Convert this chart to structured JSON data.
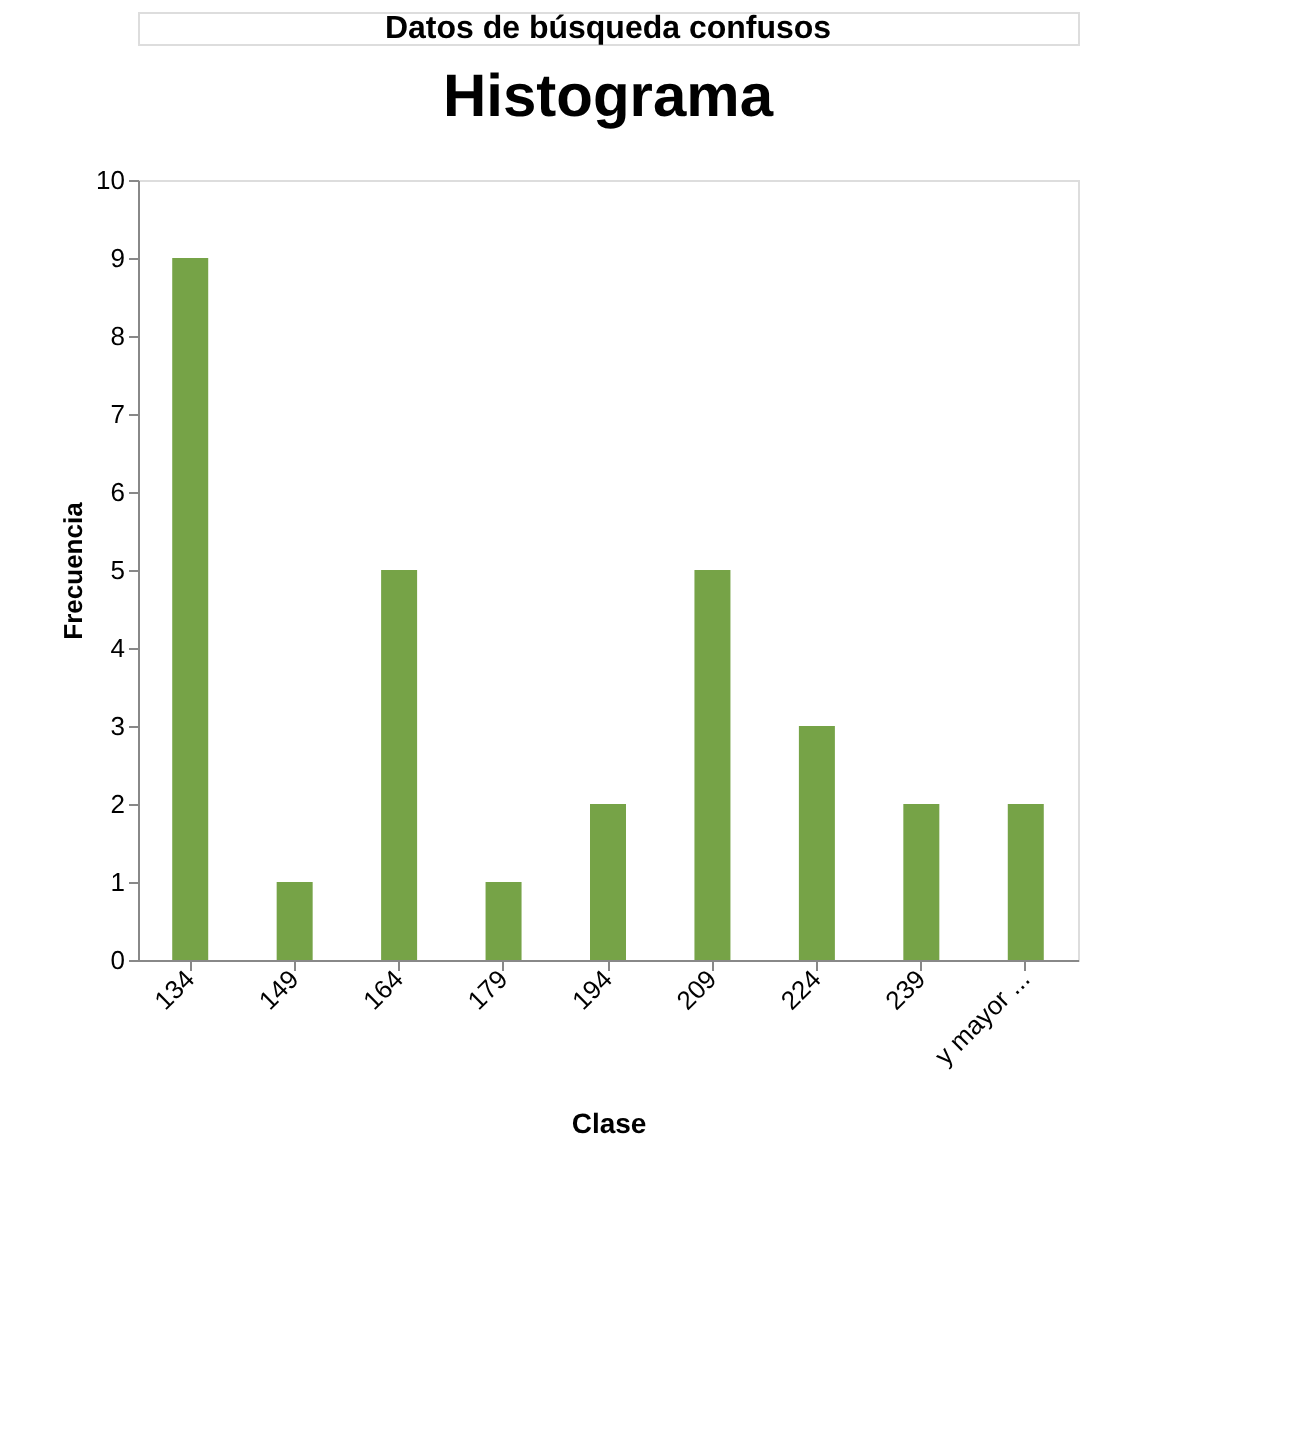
{
  "chart_data": {
    "type": "bar",
    "title": "Histograma",
    "xlabel": "Clase",
    "ylabel": "Frecuencia",
    "annotations": [
      "Datos de búsqueda confusos"
    ],
    "categories": [
      "134",
      "149",
      "164",
      "179",
      "194",
      "209",
      "224",
      "239",
      "y mayor ..."
    ],
    "series": [
      {
        "color": "#76a347",
        "values": [
          9,
          1,
          5,
          1,
          2,
          5,
          3,
          2,
          2
        ]
      }
    ],
    "ylim": [
      0,
      10
    ],
    "yticks": [
      0,
      1,
      2,
      3,
      4,
      5,
      6,
      7,
      8,
      9,
      10
    ],
    "grid": false
  }
}
